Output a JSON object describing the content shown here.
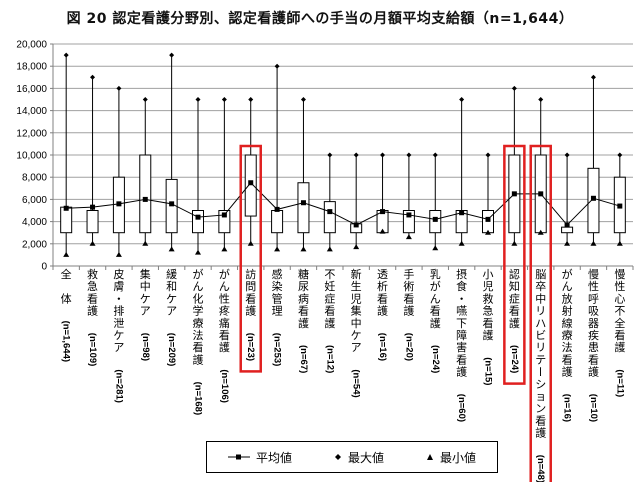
{
  "title": "図 20  認定看護分野別、認定看護師への手当の月額平均支給額（n=1,644）",
  "legend": {
    "mean": "平均値",
    "max": "最大値",
    "min": "最小値"
  },
  "colors": {
    "highlight": "#e02020",
    "grid": "#a0a0a0",
    "line": "#000000"
  },
  "chart_data": {
    "type": "box-range",
    "title": "図 20  認定看護分野別、認定看護師への手当の月額平均支給額（n=1,644）",
    "xlabel": "",
    "ylabel": "",
    "ylim": [
      0,
      20000
    ],
    "yticks": [
      "0",
      "2,000",
      "4,000",
      "6,000",
      "8,000",
      "10,000",
      "12,000",
      "14,000",
      "16,000",
      "18,000",
      "20,000"
    ],
    "grid": true,
    "legend_position": "bottom",
    "highlighted": [
      "訪問看護",
      "認知症看護",
      "脳卒中リハビリテーション看護"
    ],
    "categories": [
      {
        "label": "全　体",
        "n": "(n=1,644)",
        "max": 19000,
        "min": 1000,
        "q1": 3000,
        "q3": 5300,
        "mean": 5200
      },
      {
        "label": "救急看護",
        "n": "(n=109)",
        "max": 17000,
        "min": 2000,
        "q1": 3000,
        "q3": 5000,
        "mean": 5300
      },
      {
        "label": "皮膚・排泄ケア",
        "n": "(n=281)",
        "max": 16000,
        "min": 1000,
        "q1": 3000,
        "q3": 8000,
        "mean": 5600
      },
      {
        "label": "集中ケア",
        "n": "(n=98)",
        "max": 15000,
        "min": 2000,
        "q1": 3000,
        "q3": 10000,
        "mean": 6000
      },
      {
        "label": "緩和ケア",
        "n": "(n=209)",
        "max": 19000,
        "min": 1500,
        "q1": 3000,
        "q3": 7800,
        "mean": 5600
      },
      {
        "label": "がん化学療法看護",
        "n": "(n=168)",
        "max": 15000,
        "min": 1200,
        "q1": 3000,
        "q3": 5000,
        "mean": 4400
      },
      {
        "label": "がん性疼痛看護",
        "n": "(n=106)",
        "max": 15000,
        "min": 1500,
        "q1": 3000,
        "q3": 5000,
        "mean": 4600
      },
      {
        "label": "訪問看護",
        "n": "(n=23)",
        "max": 15000,
        "min": 2000,
        "q1": 4500,
        "q3": 10000,
        "mean": 7500
      },
      {
        "label": "感染管理",
        "n": "(n=253)",
        "max": 18000,
        "min": 1500,
        "q1": 3000,
        "q3": 5000,
        "mean": 5100
      },
      {
        "label": "糖尿病看護",
        "n": "(n=67)",
        "max": 15000,
        "min": 1500,
        "q1": 3000,
        "q3": 7500,
        "mean": 5700
      },
      {
        "label": "不妊症看護",
        "n": "(n=12)",
        "max": 10000,
        "min": 1500,
        "q1": 3000,
        "q3": 5800,
        "mean": 4900
      },
      {
        "label": "新生児集中ケア",
        "n": "(n=54)",
        "max": 10000,
        "min": 1700,
        "q1": 3000,
        "q3": 3800,
        "mean": 3700
      },
      {
        "label": "透析看護",
        "n": "(n=16)",
        "max": 10000,
        "min": 3100,
        "q1": 3000,
        "q3": 5000,
        "mean": 4900
      },
      {
        "label": "手術看護",
        "n": "(n=20)",
        "max": 10000,
        "min": 2600,
        "q1": 3000,
        "q3": 5000,
        "mean": 4600
      },
      {
        "label": "乳がん看護",
        "n": "(n=24)",
        "max": 10000,
        "min": 1600,
        "q1": 3000,
        "q3": 5000,
        "mean": 4200
      },
      {
        "label": "摂食・嚥下障害看護",
        "n": "(n=60)",
        "max": 15000,
        "min": 2000,
        "q1": 3000,
        "q3": 5000,
        "mean": 4800
      },
      {
        "label": "小児救急看護",
        "n": "(n=15)",
        "max": 10000,
        "min": 3000,
        "q1": 3000,
        "q3": 5000,
        "mean": 4200
      },
      {
        "label": "認知症看護",
        "n": "(n=24)",
        "max": 16000,
        "min": 2000,
        "q1": 3000,
        "q3": 10000,
        "mean": 6500
      },
      {
        "label": "脳卒中リハビリテーション看護",
        "n": "(n=48)",
        "max": 15000,
        "min": 3000,
        "q1": 3000,
        "q3": 10000,
        "mean": 6500
      },
      {
        "label": "がん放射線療法看護",
        "n": "(n=16)",
        "max": 10000,
        "min": 2000,
        "q1": 3000,
        "q3": 3500,
        "mean": 3700
      },
      {
        "label": "慢性呼吸器疾患看護",
        "n": "(n=10)",
        "max": 17000,
        "min": 2000,
        "q1": 3000,
        "q3": 8800,
        "mean": 6100
      },
      {
        "label": "慢性心不全看護",
        "n": "(n=11)",
        "max": 10000,
        "min": 2000,
        "q1": 3000,
        "q3": 8000,
        "mean": 5400
      }
    ],
    "series": [
      {
        "name": "平均値",
        "values": [
          5200,
          5300,
          5600,
          6000,
          5600,
          4400,
          4600,
          7500,
          5100,
          5700,
          4900,
          3700,
          4900,
          4600,
          4200,
          4800,
          4200,
          6500,
          6500,
          3700,
          6100,
          5400
        ]
      },
      {
        "name": "最大値",
        "values": [
          19000,
          17000,
          16000,
          15000,
          19000,
          15000,
          15000,
          15000,
          18000,
          15000,
          10000,
          10000,
          10000,
          10000,
          10000,
          15000,
          10000,
          16000,
          15000,
          10000,
          17000,
          10000
        ]
      },
      {
        "name": "最小値",
        "values": [
          1000,
          2000,
          1000,
          2000,
          1500,
          1200,
          1500,
          2000,
          1500,
          1500,
          1500,
          1700,
          3100,
          2600,
          1600,
          2000,
          3000,
          2000,
          3000,
          2000,
          2000,
          2000
        ]
      }
    ]
  }
}
